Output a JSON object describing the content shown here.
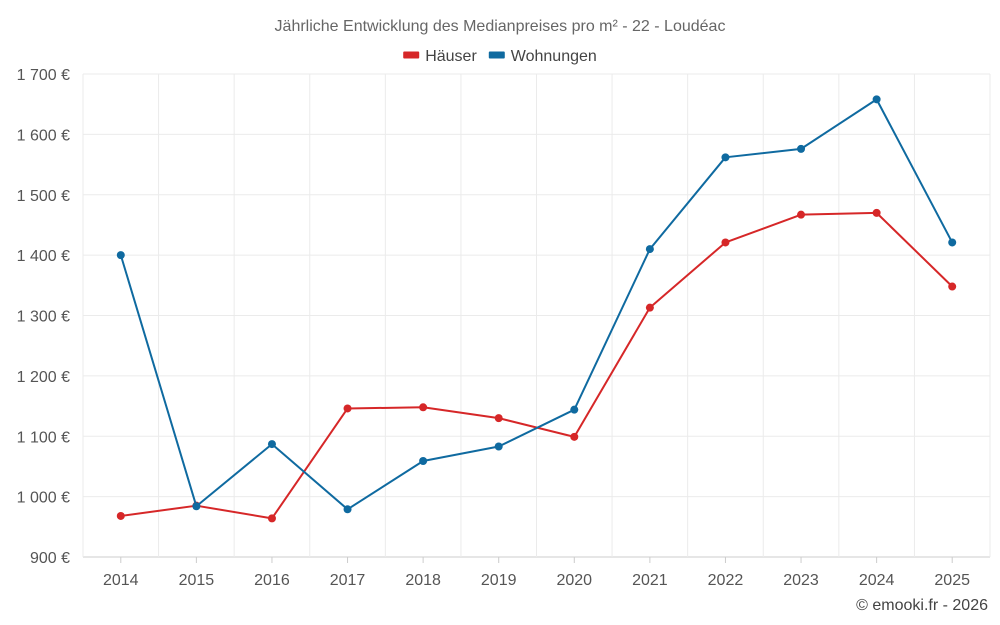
{
  "chart_data": {
    "type": "line",
    "title": "Jährliche Entwicklung des Medianpreises pro m² - 22 - Loudéac",
    "categories": [
      "2014",
      "2015",
      "2016",
      "2017",
      "2018",
      "2019",
      "2020",
      "2021",
      "2022",
      "2023",
      "2024",
      "2025"
    ],
    "series": [
      {
        "name": "Häuser",
        "color": "#d62728",
        "values": [
          968,
          985,
          964,
          1146,
          1148,
          1130,
          1099,
          1313,
          1421,
          1467,
          1470,
          1348
        ]
      },
      {
        "name": "Wohnungen",
        "color": "#0f6aa0",
        "values": [
          1400,
          984,
          1087,
          979,
          1059,
          1083,
          1144,
          1410,
          1562,
          1576,
          1658,
          1421
        ]
      }
    ],
    "ylim": [
      900,
      1700
    ],
    "yticks": [
      900,
      1000,
      1100,
      1200,
      1300,
      1400,
      1500,
      1600,
      1700
    ],
    "ytick_labels": [
      "900 €",
      "1 000 €",
      "1 100 €",
      "1 200 €",
      "1 300 €",
      "1 400 €",
      "1 500 €",
      "1 600 €",
      "1 700 €"
    ],
    "legend_position": "top-center",
    "grid": true
  },
  "credit": "© emooki.fr - 2026"
}
